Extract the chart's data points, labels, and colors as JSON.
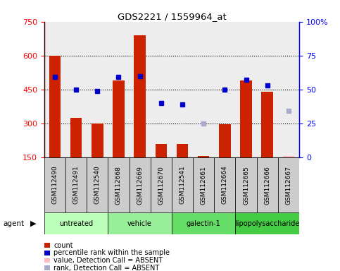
{
  "title": "GDS2221 / 1559964_at",
  "samples": [
    "GSM112490",
    "GSM112491",
    "GSM112540",
    "GSM112668",
    "GSM112669",
    "GSM112670",
    "GSM112541",
    "GSM112661",
    "GSM112664",
    "GSM112665",
    "GSM112666",
    "GSM112667"
  ],
  "groups": [
    {
      "name": "untreated",
      "color": "#bbffbb",
      "indices": [
        0,
        1,
        2
      ]
    },
    {
      "name": "vehicle",
      "color": "#99ee99",
      "indices": [
        3,
        4,
        5
      ]
    },
    {
      "name": "galectin-1",
      "color": "#66dd66",
      "indices": [
        6,
        7,
        8
      ]
    },
    {
      "name": "lipopolysaccharide",
      "color": "#44cc44",
      "indices": [
        9,
        10,
        11
      ]
    }
  ],
  "bar_values": [
    600,
    325,
    300,
    490,
    690,
    210,
    210,
    155,
    295,
    490,
    440,
    155
  ],
  "bar_absent": [
    false,
    false,
    false,
    false,
    false,
    false,
    false,
    false,
    false,
    false,
    false,
    true
  ],
  "percentile_values": [
    59,
    50,
    49,
    59,
    60,
    40,
    39,
    null,
    50,
    57,
    53,
    null
  ],
  "percentile_absent": [
    false,
    false,
    false,
    false,
    false,
    false,
    false,
    true,
    false,
    false,
    false,
    true
  ],
  "percentile_absent_values": [
    null,
    null,
    null,
    null,
    null,
    null,
    null,
    25,
    null,
    null,
    null,
    34
  ],
  "ylim_left": [
    150,
    750
  ],
  "ylim_right": [
    0,
    100
  ],
  "yticks_left": [
    150,
    300,
    450,
    600,
    750
  ],
  "yticks_right": [
    0,
    25,
    50,
    75,
    100
  ],
  "bar_color": "#cc2200",
  "bar_absent_color": "#ffbbbb",
  "dot_color": "#0000cc",
  "dot_absent_color": "#aaaacc",
  "label_bg_color": "#cccccc"
}
